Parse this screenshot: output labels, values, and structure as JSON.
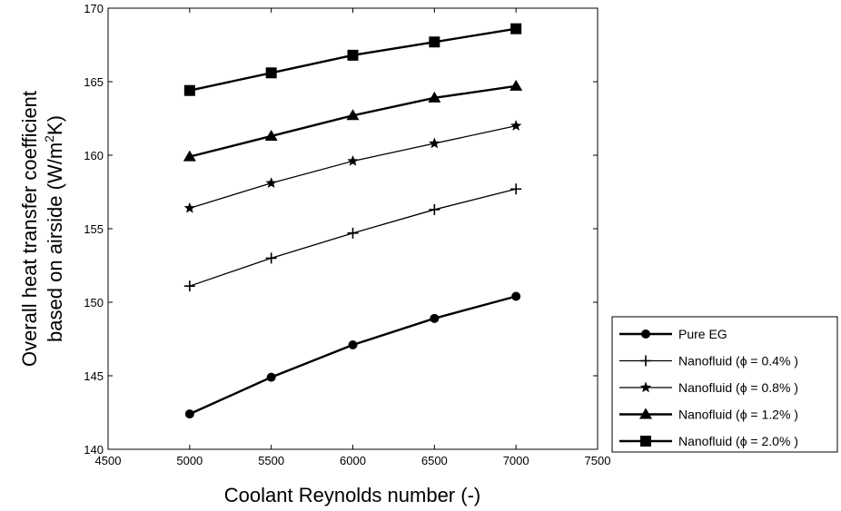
{
  "chart_data": {
    "type": "line",
    "xlabel": "Coolant Reynolds number (-)",
    "ylabel_line1": "Overall heat transfer coefficient",
    "ylabel_line2": "based on airside (W/m",
    "ylabel_sup": "2",
    "ylabel_tail": "K)",
    "xlim": [
      4500,
      7500
    ],
    "ylim": [
      140,
      170
    ],
    "xticks": [
      "4500",
      "5000",
      "5500",
      "6000",
      "6500",
      "7000",
      "7500"
    ],
    "yticks": [
      "140",
      "145",
      "150",
      "155",
      "160",
      "165",
      "170"
    ],
    "grid": false,
    "legend_position": "outside-right-bottom",
    "x": [
      5000,
      5500,
      6000,
      6500,
      7000
    ],
    "series": [
      {
        "name": "Pure EG",
        "marker": "circle",
        "values": [
          142.4,
          144.9,
          147.1,
          148.9,
          150.4
        ]
      },
      {
        "name": "Nanofluid (ϕ = 0.4% )",
        "marker": "plus",
        "values": [
          151.1,
          153.0,
          154.7,
          156.3,
          157.7
        ]
      },
      {
        "name": "Nanofluid (ϕ = 0.8% )",
        "marker": "star",
        "values": [
          156.4,
          158.1,
          159.6,
          160.8,
          162.0
        ]
      },
      {
        "name": "Nanofluid (ϕ = 1.2% )",
        "marker": "triangle",
        "values": [
          159.9,
          161.3,
          162.7,
          163.9,
          164.7
        ]
      },
      {
        "name": "Nanofluid (ϕ = 2.0% )",
        "marker": "square",
        "values": [
          164.4,
          165.6,
          166.8,
          167.7,
          168.6
        ]
      }
    ],
    "line_color": "#000000"
  }
}
